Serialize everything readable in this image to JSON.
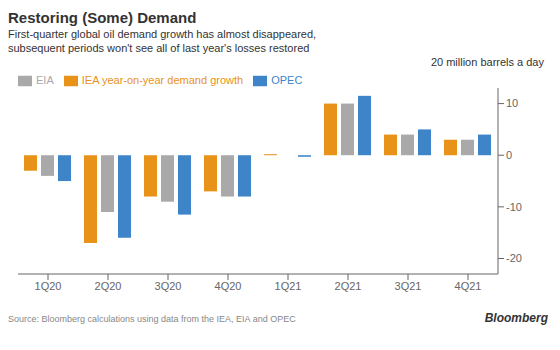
{
  "chart_data": {
    "type": "bar",
    "title": "Restoring (Some) Demand",
    "subtitle": [
      "First-quarter global oil demand growth has almost disappeared,",
      "subsequent periods won't see all of last year's losses restored"
    ],
    "categories": [
      "1Q20",
      "2Q20",
      "3Q20",
      "4Q20",
      "1Q21",
      "2Q21",
      "3Q21",
      "4Q21"
    ],
    "series": [
      {
        "name": "IEA year-on-year demand growth",
        "color": "#E8921A",
        "values": [
          -3.0,
          -17.0,
          -8.0,
          -7.0,
          0.2,
          10.0,
          4.0,
          3.0
        ]
      },
      {
        "name": "EIA",
        "color": "#A9A9A9",
        "values": [
          -4.0,
          -11.0,
          -9.0,
          -8.0,
          0.0,
          10.0,
          4.0,
          3.0
        ]
      },
      {
        "name": "OPEC",
        "color": "#3D85C8",
        "values": [
          -5.0,
          -16.0,
          -11.5,
          -8.0,
          -0.3,
          11.5,
          5.0,
          4.0
        ]
      }
    ],
    "ylim": [
      -23,
      13
    ],
    "yticks": [
      -20,
      -10,
      0,
      10
    ],
    "grid": false,
    "legend": "upper left",
    "annotations": [
      "20 million barrels a day",
      "Source: Bloomberg calculations using data from the IEA, EIA and OPEC",
      "Bloomberg"
    ]
  }
}
